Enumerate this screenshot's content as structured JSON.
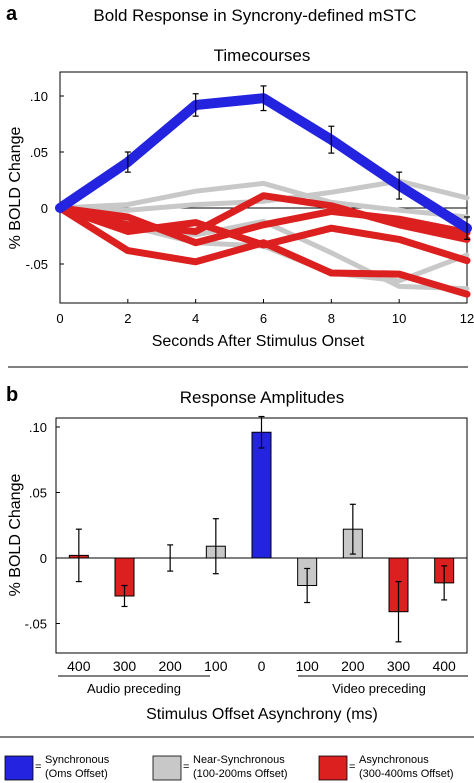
{
  "figure_title": "Bold Response in Syncrony-defined mSTC",
  "legend": [
    {
      "label_line1": "Synchronous",
      "label_line2": "(Oms Offset)",
      "color": "#2323e0"
    },
    {
      "label_line1": "Near-Synchronous",
      "label_line2": "(100-200ms Offset)",
      "color": "#c8c8c8"
    },
    {
      "label_line1": "Asynchronous",
      "label_line2": "(300-400ms Offset)",
      "color": "#dc1f1f"
    }
  ],
  "legend_equals": "=",
  "chart_data": [
    {
      "panel_letter": "a",
      "type": "line",
      "title": "Timecourses",
      "xlabel": "Seconds After Stimulus Onset",
      "ylabel": "% BOLD Change",
      "x": [
        0,
        2,
        4,
        6,
        8,
        10,
        12
      ],
      "xlim": [
        0,
        12
      ],
      "ylim": [
        -0.085,
        0.115
      ],
      "y_ticks": [
        0.1,
        0.05,
        0,
        -0.05
      ],
      "y_tick_labels": [
        ".10",
        ".05",
        "0",
        "-.05"
      ],
      "x_tick_labels": [
        "0",
        "2",
        "4",
        "6",
        "8",
        "10",
        "12"
      ],
      "grid": false,
      "series": [
        {
          "group": "near-synchronous",
          "color": "#c8c8c8",
          "values": [
            0,
            0.003,
            0.015,
            0.022,
            0.005,
            -0.002,
            -0.008
          ]
        },
        {
          "group": "near-synchronous",
          "color": "#c8c8c8",
          "values": [
            0,
            -0.002,
            0.003,
            0.006,
            0.014,
            0.024,
            0.009
          ]
        },
        {
          "group": "near-synchronous",
          "color": "#c8c8c8",
          "values": [
            0,
            -0.013,
            -0.024,
            -0.012,
            -0.04,
            -0.07,
            -0.072
          ]
        },
        {
          "group": "near-synchronous",
          "color": "#c8c8c8",
          "values": [
            0,
            -0.016,
            -0.031,
            -0.034,
            -0.058,
            -0.065,
            -0.042
          ]
        },
        {
          "group": "asynchronous",
          "color": "#dc1f1f",
          "values": [
            0,
            -0.008,
            -0.031,
            -0.015,
            -0.003,
            -0.01,
            -0.022
          ]
        },
        {
          "group": "asynchronous",
          "color": "#dc1f1f",
          "values": [
            0,
            -0.015,
            -0.021,
            0.011,
            0.002,
            -0.015,
            -0.028
          ]
        },
        {
          "group": "asynchronous",
          "color": "#dc1f1f",
          "values": [
            0,
            -0.021,
            -0.013,
            -0.033,
            -0.018,
            -0.028,
            -0.047
          ]
        },
        {
          "group": "asynchronous",
          "color": "#dc1f1f",
          "values": [
            0,
            -0.038,
            -0.048,
            -0.031,
            -0.058,
            -0.059,
            -0.077
          ]
        },
        {
          "group": "synchronous",
          "color": "#2323e0",
          "values": [
            0,
            0.041,
            0.092,
            0.098,
            0.061,
            0.02,
            -0.018
          ],
          "error": [
            0,
            0.009,
            0.01,
            0.011,
            0.012,
            0.012,
            0.01
          ]
        }
      ]
    },
    {
      "panel_letter": "b",
      "type": "bar",
      "title": "Response Amplitudes",
      "xlabel": "Stimulus Offset Asynchrony (ms)",
      "ylabel": "% BOLD Change",
      "ylim": [
        -0.075,
        0.115
      ],
      "y_ticks": [
        0.1,
        0.05,
        0,
        -0.05
      ],
      "y_tick_labels": [
        ".10",
        ".05",
        "0",
        "-.05"
      ],
      "grid": false,
      "categories": [
        "400",
        "300",
        "200",
        "100",
        "0",
        "100",
        "200",
        "300",
        "400"
      ],
      "values": [
        0.002,
        -0.029,
        0,
        0.009,
        0.096,
        -0.021,
        0.022,
        -0.041,
        -0.019
      ],
      "errors": [
        0.02,
        0.008,
        0.01,
        0.021,
        0.012,
        0.013,
        0.019,
        0.023,
        0.013
      ],
      "bar_colors": [
        "#dc1f1f",
        "#dc1f1f",
        "#c8c8c8",
        "#c8c8c8",
        "#2323e0",
        "#c8c8c8",
        "#c8c8c8",
        "#dc1f1f",
        "#dc1f1f"
      ],
      "group_labels": [
        "Audio preceding",
        "Video preceding"
      ]
    }
  ]
}
